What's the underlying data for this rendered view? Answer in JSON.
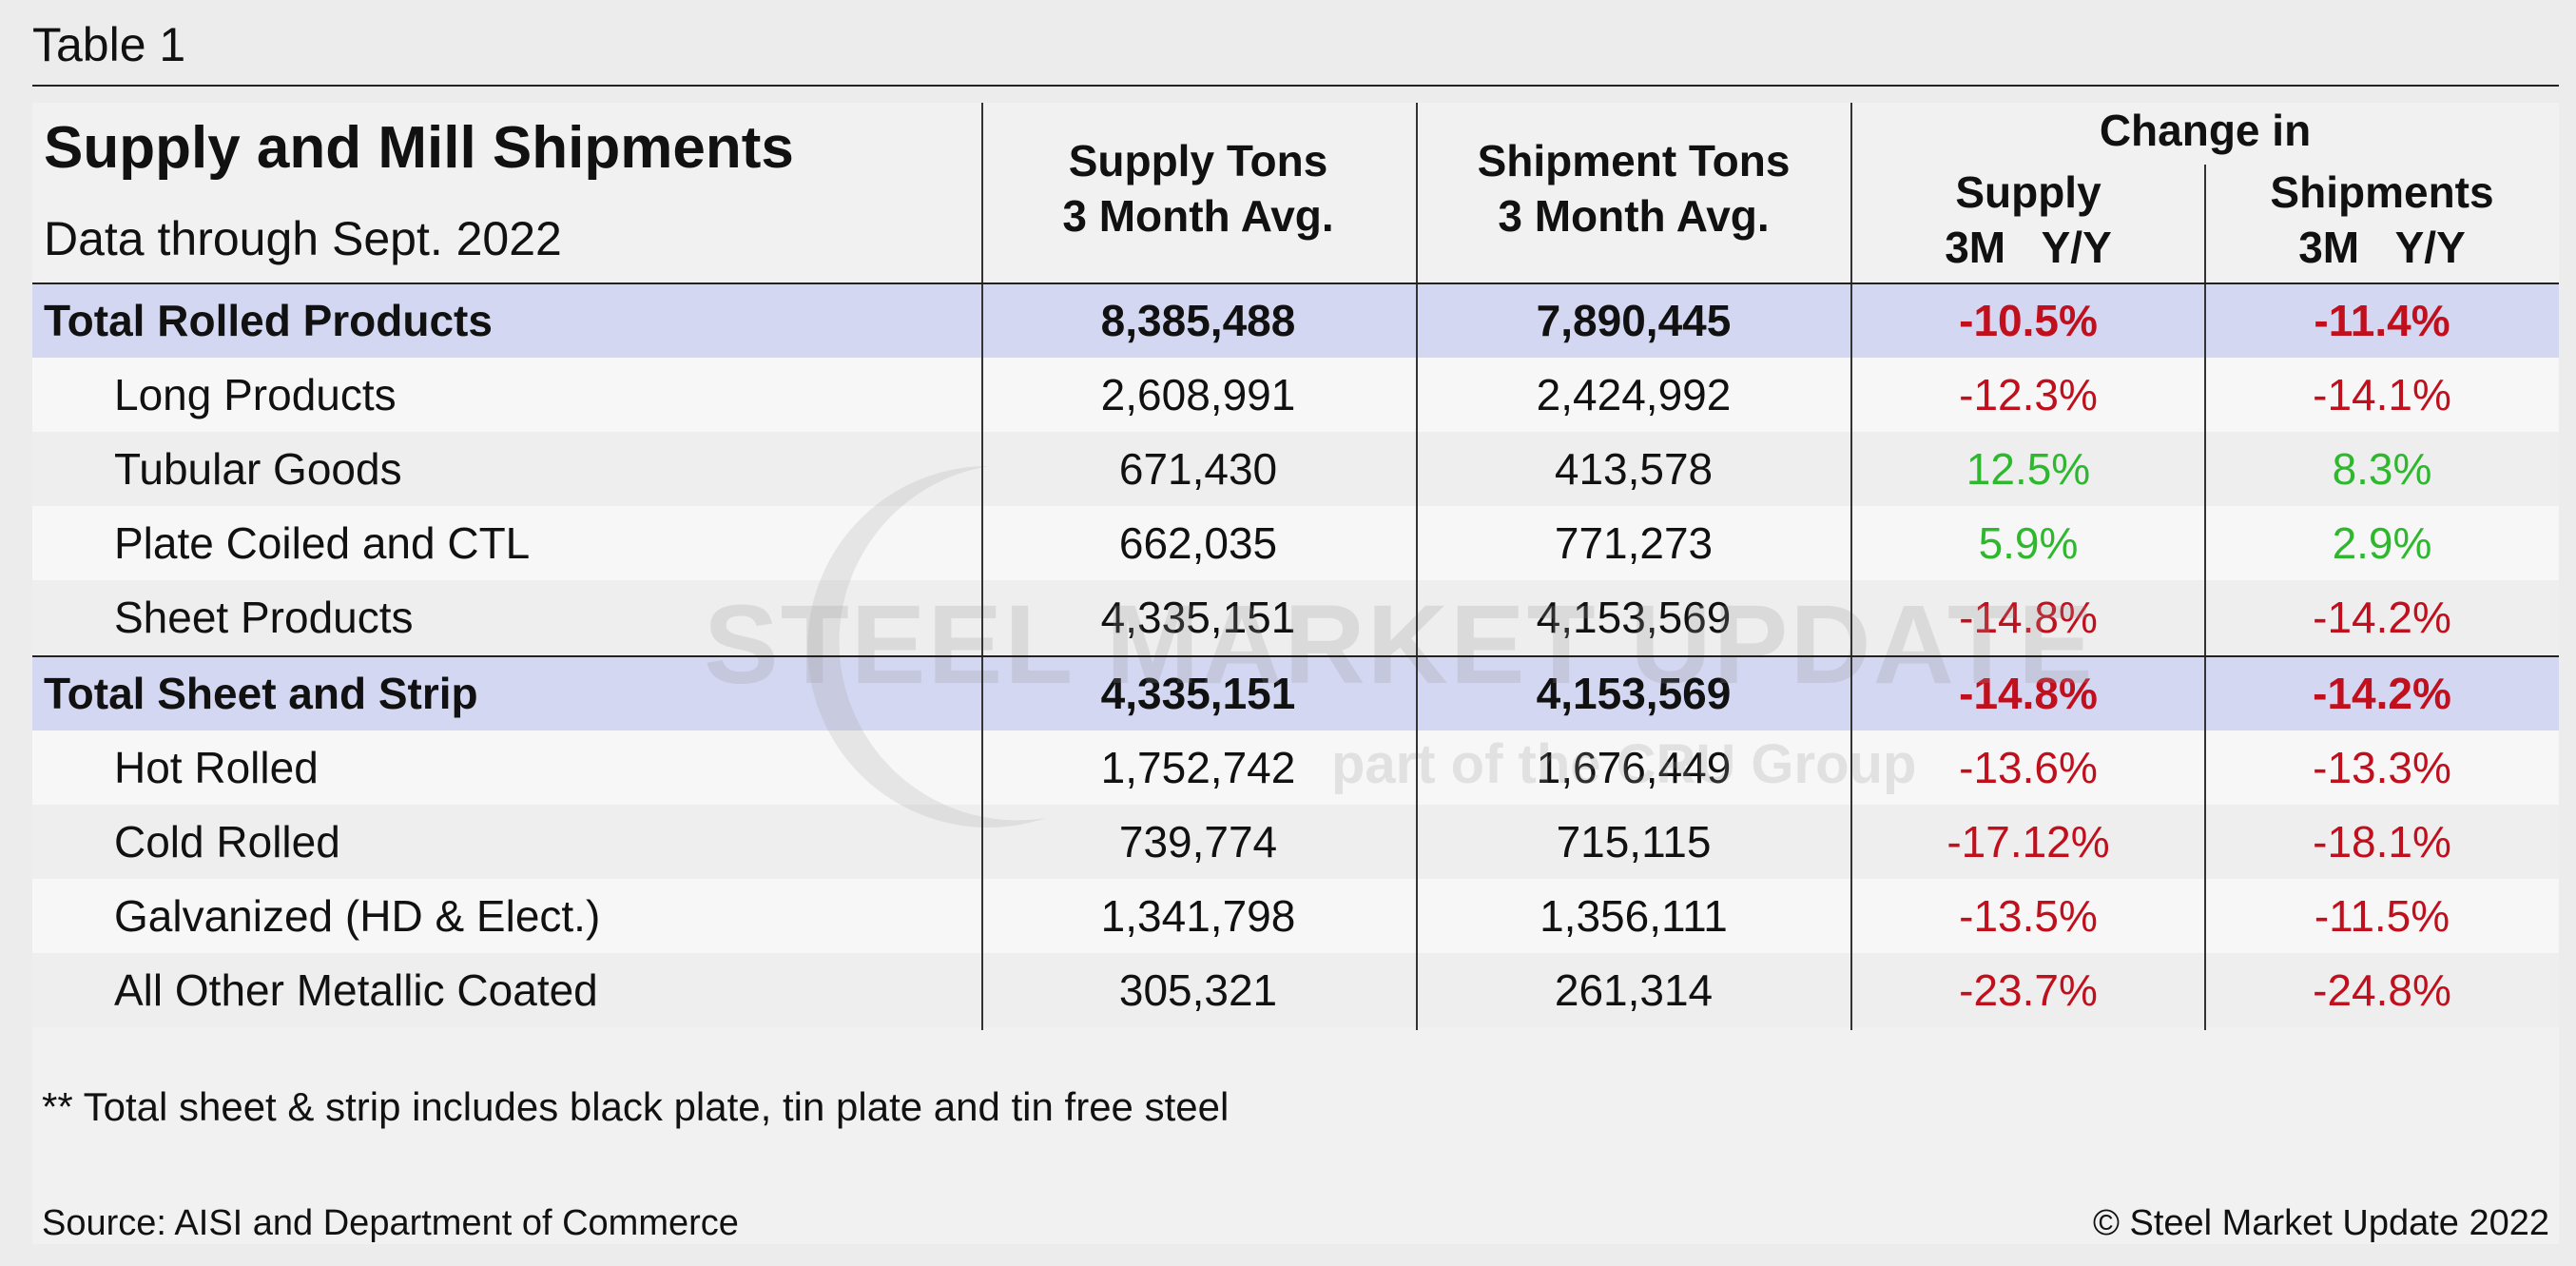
{
  "caption": "Table 1",
  "header": {
    "title": "Supply and Mill Shipments",
    "subtitle": "Data through Sept. 2022",
    "col_supply_line1": "Supply Tons",
    "col_supply_line2": "3 Month Avg.",
    "col_ship_line1": "Shipment Tons",
    "col_ship_line2": "3 Month Avg.",
    "change_in": "Change in",
    "chg_supply": "Supply",
    "chg_supply_sub": "3M   Y/Y",
    "chg_ship": "Shipments",
    "chg_ship_sub": "3M   Y/Y"
  },
  "rows": [
    {
      "label": "Total Rolled Products",
      "supply": "8,385,488",
      "shipments": "7,890,445",
      "chg_supply": "-10.5%",
      "chg_ship": "-11.4%"
    },
    {
      "label": "Long Products",
      "supply": "2,608,991",
      "shipments": "2,424,992",
      "chg_supply": "-12.3%",
      "chg_ship": "-14.1%"
    },
    {
      "label": "Tubular Goods",
      "supply": "671,430",
      "shipments": "413,578",
      "chg_supply": "12.5%",
      "chg_ship": "8.3%"
    },
    {
      "label": "Plate Coiled and CTL",
      "supply": "662,035",
      "shipments": "771,273",
      "chg_supply": "5.9%",
      "chg_ship": "2.9%"
    },
    {
      "label": "Sheet Products",
      "supply": "4,335,151",
      "shipments": "4,153,569",
      "chg_supply": "-14.8%",
      "chg_ship": "-14.2%"
    },
    {
      "label": "Total Sheet and Strip",
      "supply": "4,335,151",
      "shipments": "4,153,569",
      "chg_supply": "-14.8%",
      "chg_ship": "-14.2%"
    },
    {
      "label": "Hot Rolled",
      "supply": "1,752,742",
      "shipments": "1,676,449",
      "chg_supply": "-13.6%",
      "chg_ship": "-13.3%"
    },
    {
      "label": "Cold Rolled",
      "supply": "739,774",
      "shipments": "715,115",
      "chg_supply": "-17.12%",
      "chg_ship": "-18.1%"
    },
    {
      "label": "Galvanized (HD & Elect.)",
      "supply": "1,341,798",
      "shipments": "1,356,111",
      "chg_supply": "-13.5%",
      "chg_ship": "-11.5%"
    },
    {
      "label": "All Other Metallic Coated",
      "supply": "305,321",
      "shipments": "261,314",
      "chg_supply": "-23.7%",
      "chg_ship": "-24.8%"
    }
  ],
  "footnote": "** Total sheet & strip includes black plate, tin plate and tin free steel",
  "source": "Source: AISI and Department of Commerce",
  "copyright": "© Steel Market Update 2022",
  "watermark": {
    "text": "STEEL MARKET UPDATE",
    "sub": "part of the CRU Group"
  },
  "colors": {
    "negative": "#c0101e",
    "positive": "#2eb82e",
    "total_row_bg": "#d3d7f1"
  }
}
